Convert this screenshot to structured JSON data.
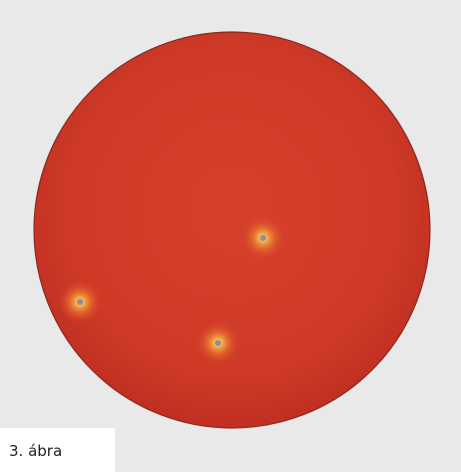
{
  "caption": "3. ábra"
}
